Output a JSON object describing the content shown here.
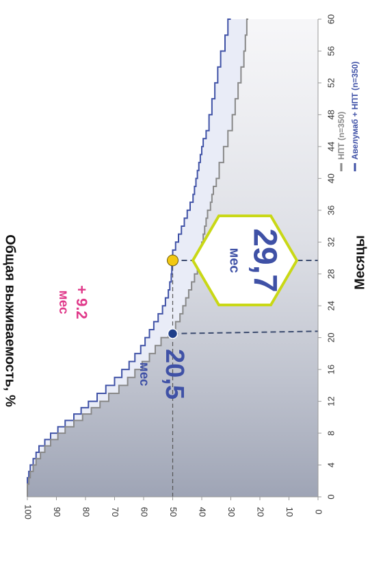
{
  "chart_data": {
    "type": "line",
    "xlabel": "Месяцы",
    "ylabel": "Общая выживаемость, %",
    "xlim": [
      0,
      60
    ],
    "ylim": [
      0,
      100
    ],
    "x_ticks": [
      0,
      4,
      8,
      12,
      16,
      20,
      24,
      28,
      32,
      36,
      40,
      44,
      48,
      52,
      56,
      60
    ],
    "y_ticks": [
      0,
      10,
      20,
      30,
      40,
      50,
      60,
      70,
      80,
      90,
      100
    ],
    "legend": "top-left",
    "series": [
      {
        "name": "Авелумаб + НПТ (n=350)",
        "color": "#3f51a6",
        "x": [
          0,
          0.8,
          1.6,
          2.4,
          3.2,
          4,
          4.8,
          5.6,
          6.4,
          7.2,
          8,
          8.8,
          9.6,
          10.4,
          11.2,
          12,
          13,
          14,
          15,
          16,
          17,
          18,
          19,
          20,
          21,
          22,
          23,
          24,
          25,
          26,
          27,
          28,
          29,
          29.7,
          31,
          32,
          33,
          34,
          35,
          36,
          37,
          38,
          39,
          40,
          41,
          42,
          43,
          44,
          45,
          46,
          48,
          50,
          52,
          54,
          56,
          58,
          60
        ],
        "values": [
          100,
          100,
          100,
          99.5,
          99,
          98,
          97,
          96,
          94,
          92,
          89.5,
          87,
          84,
          81.5,
          79,
          76,
          73,
          70,
          67.5,
          65,
          63,
          61,
          59.5,
          58,
          56.5,
          55,
          53.5,
          52.5,
          51.5,
          51,
          50.5,
          50.3,
          50.1,
          50,
          49,
          48,
          47,
          46,
          45,
          44,
          43,
          42.5,
          42,
          41.5,
          41,
          40.5,
          40,
          39.5,
          38.5,
          37.5,
          36.5,
          35.5,
          34.5,
          33.5,
          32,
          31,
          30
        ]
      },
      {
        "name": "НПТ (n=350)",
        "color": "#888888",
        "x": [
          0,
          0.8,
          1.6,
          2.4,
          3.2,
          4,
          4.8,
          5.6,
          6.4,
          7.2,
          8,
          8.8,
          9.6,
          10.4,
          11.2,
          12,
          13,
          14,
          15,
          16,
          17,
          18,
          19,
          20,
          20.5,
          21,
          22,
          23,
          24,
          25,
          26,
          27,
          28,
          29,
          30,
          31,
          32,
          33,
          34,
          35,
          36,
          37,
          38,
          39,
          40,
          42,
          44,
          46,
          48,
          50,
          52,
          54,
          56,
          58,
          60
        ],
        "values": [
          100,
          100,
          99.5,
          99,
          98,
          97,
          95.5,
          94,
          92,
          89.5,
          87,
          84,
          81,
          78,
          75,
          72,
          68.5,
          65.5,
          63,
          60.5,
          58,
          56,
          54,
          51.5,
          50,
          49,
          47.5,
          46.5,
          45.5,
          44.5,
          43.5,
          42.5,
          41.5,
          41,
          40.5,
          40,
          39.5,
          39,
          38.5,
          38,
          37,
          36.5,
          36,
          35,
          34,
          32.5,
          31,
          29.5,
          28.5,
          27.5,
          26.5,
          25.5,
          25,
          24.5,
          24
        ]
      }
    ],
    "annotations": {
      "avelumab_median": {
        "x": 29.7,
        "y": 50,
        "value": "29,7",
        "unit": "мес",
        "color": "#3f51a6"
      },
      "control_median": {
        "x": 20.5,
        "y": 50,
        "value": "20,5",
        "unit": "мес",
        "color": "#3f51a6"
      },
      "difference": {
        "value": "+ 9.2",
        "unit": "мес",
        "color": "#e0398a"
      }
    },
    "marker_colors": {
      "avelumab": "#f2c811",
      "control": "#1f3f8a"
    },
    "hexagon_color": "#c9d816"
  }
}
